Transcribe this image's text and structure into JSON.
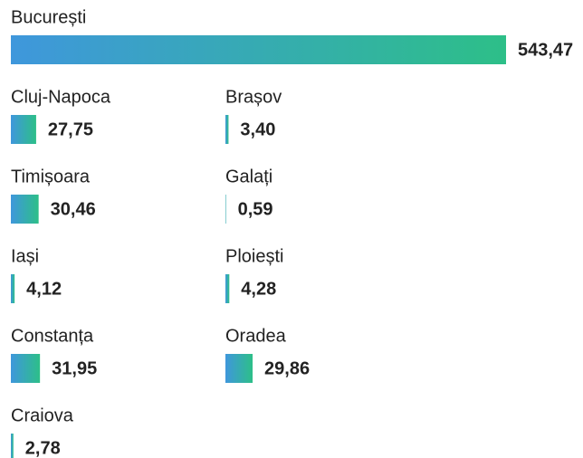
{
  "chart_data": {
    "type": "bar",
    "categories": [
      "București",
      "Cluj-Napoca",
      "Brașov",
      "Timișoara",
      "Galați",
      "Iași",
      "Ploiești",
      "Constanța",
      "Oradea",
      "Craiova"
    ],
    "values": [
      543.47,
      27.75,
      3.4,
      30.46,
      0.59,
      4.12,
      4.28,
      31.95,
      29.86,
      2.78
    ],
    "value_labels": [
      "543,47",
      "27,75",
      "3,40",
      "30,46",
      "0,59",
      "4,12",
      "4,28",
      "31,95",
      "29,86",
      "2,78"
    ],
    "colors": [
      "#3f97dc",
      "#2dbf88"
    ]
  }
}
